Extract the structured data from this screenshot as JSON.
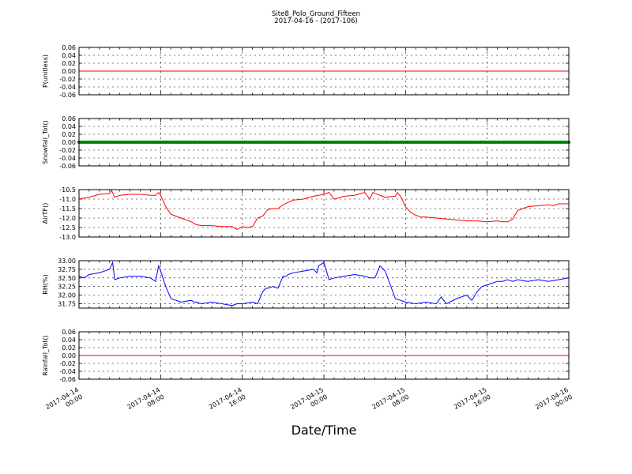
{
  "figure": {
    "title": "Site8_Polo_Ground_Fifteen",
    "subtitle": "2017-04-16 - (2017-106)",
    "xlabel": "Date/Time"
  },
  "chart_data": [
    {
      "type": "line",
      "ylabel": "P(unitless)",
      "ylim": [
        -0.06,
        0.06
      ],
      "yticks": [
        "0.06",
        "0.04",
        "0.02",
        "0.00",
        "-0.02",
        "-0.04",
        "-0.06"
      ],
      "yticks_values": [
        0.06,
        0.04,
        0.02,
        0.0,
        -0.02,
        -0.04,
        -0.06
      ],
      "grid": true,
      "series": [
        {
          "color": "#ff0000",
          "style": "line",
          "x": [
            0,
            48
          ],
          "y": [
            0,
            0
          ]
        }
      ]
    },
    {
      "type": "scatter",
      "ylabel": "Snowfall_Tot()",
      "ylim": [
        -0.06,
        0.06
      ],
      "yticks": [
        "0.06",
        "0.04",
        "0.02",
        "0.00",
        "-0.02",
        "-0.04",
        "-0.06"
      ],
      "yticks_values": [
        0.06,
        0.04,
        0.02,
        0.0,
        -0.02,
        -0.04,
        -0.06
      ],
      "grid": true,
      "series": [
        {
          "color": "#008000",
          "style": "dots",
          "x": [
            0,
            48
          ],
          "y": [
            0,
            0
          ]
        }
      ]
    },
    {
      "type": "line",
      "ylabel": "AirTF()",
      "ylim": [
        -13.0,
        -10.5
      ],
      "yticks": [
        "-10.5",
        "-11.0",
        "-11.5",
        "-12.0",
        "-12.5",
        "-13.0"
      ],
      "yticks_values": [
        -10.5,
        -11.0,
        -11.5,
        -12.0,
        -12.5,
        -13.0
      ],
      "grid": true,
      "series": [
        {
          "color": "#ff0000",
          "style": "line",
          "x": [
            0,
            0.5,
            1,
            2,
            3,
            3.2,
            3.5,
            4,
            5,
            6,
            7,
            7.5,
            7.8,
            8,
            8.5,
            9,
            9.5,
            10,
            11,
            11.5,
            12,
            13,
            14,
            15,
            15.5,
            16,
            16.5,
            17,
            17.5,
            18,
            18.5,
            19,
            19.5,
            20,
            21,
            22,
            23,
            23.5,
            24,
            24.5,
            25,
            26,
            27,
            28,
            28.5,
            28.8,
            29,
            30,
            31,
            31.2,
            31.5,
            32,
            32.5,
            33,
            33.5,
            34,
            35,
            36,
            37,
            38,
            39,
            40,
            41,
            41.5,
            42,
            42.5,
            43,
            44,
            45,
            46,
            46.5,
            47,
            48
          ],
          "y": [
            -11.0,
            -10.95,
            -10.9,
            -10.75,
            -10.7,
            -10.55,
            -10.9,
            -10.8,
            -10.75,
            -10.75,
            -10.8,
            -10.8,
            -10.65,
            -10.8,
            -11.4,
            -11.8,
            -11.9,
            -12.0,
            -12.2,
            -12.35,
            -12.4,
            -12.4,
            -12.45,
            -12.45,
            -12.6,
            -12.45,
            -12.5,
            -12.45,
            -12.0,
            -11.9,
            -11.55,
            -11.5,
            -11.5,
            -11.3,
            -11.05,
            -11.0,
            -10.85,
            -10.8,
            -10.75,
            -10.65,
            -11.0,
            -10.85,
            -10.8,
            -10.65,
            -11.0,
            -10.65,
            -10.7,
            -10.9,
            -10.85,
            -10.65,
            -10.85,
            -11.4,
            -11.7,
            -11.85,
            -11.95,
            -11.95,
            -12.0,
            -12.05,
            -12.1,
            -12.15,
            -12.15,
            -12.2,
            -12.15,
            -12.2,
            -12.2,
            -12.05,
            -11.6,
            -11.4,
            -11.35,
            -11.3,
            -11.35,
            -11.25,
            -11.25
          ]
        }
      ]
    },
    {
      "type": "line",
      "ylabel": "RH(%)",
      "ylim": [
        31.625,
        33.0
      ],
      "yticks": [
        "33.00",
        "32.75",
        "32.50",
        "32.25",
        "32.00",
        "31.75"
      ],
      "yticks_values": [
        33.0,
        32.75,
        32.5,
        32.25,
        32.0,
        31.75
      ],
      "grid": true,
      "series": [
        {
          "color": "#0000ff",
          "style": "line",
          "x": [
            0,
            0.5,
            1,
            2,
            3,
            3.3,
            3.5,
            4,
            5,
            6,
            7,
            7.5,
            7.8,
            8,
            8.5,
            9,
            9.5,
            10,
            11,
            11.3,
            11.5,
            12,
            13,
            14,
            15,
            15.5,
            16,
            17,
            17.5,
            18,
            18.3,
            18.5,
            19,
            19.5,
            20,
            20.3,
            20.5,
            21,
            22,
            23,
            23.3,
            23.5,
            24,
            24.5,
            25,
            26,
            27,
            28,
            28.5,
            29,
            29.5,
            30,
            30.5,
            31,
            31.5,
            32,
            33,
            34,
            35,
            35.5,
            36,
            37,
            37.5,
            38,
            38.5,
            39,
            39.5,
            40,
            41,
            41.5,
            42,
            42.5,
            43,
            44,
            45,
            46,
            47,
            48
          ],
          "y": [
            32.55,
            32.5,
            32.6,
            32.65,
            32.75,
            32.95,
            32.45,
            32.5,
            32.55,
            32.55,
            32.5,
            32.4,
            32.85,
            32.7,
            32.25,
            31.9,
            31.85,
            31.8,
            31.85,
            31.8,
            31.8,
            31.75,
            31.8,
            31.75,
            31.7,
            31.75,
            31.75,
            31.8,
            31.75,
            32.1,
            32.2,
            32.2,
            32.25,
            32.2,
            32.55,
            32.55,
            32.6,
            32.65,
            32.7,
            32.75,
            32.65,
            32.85,
            32.95,
            32.45,
            32.5,
            32.55,
            32.6,
            32.55,
            32.5,
            32.5,
            32.85,
            32.7,
            32.3,
            31.9,
            31.85,
            31.8,
            31.75,
            31.8,
            31.75,
            31.95,
            31.75,
            31.9,
            31.95,
            32.0,
            31.85,
            32.1,
            32.25,
            32.3,
            32.4,
            32.4,
            32.45,
            32.4,
            32.45,
            32.4,
            32.45,
            32.4,
            32.45,
            32.5
          ]
        }
      ]
    },
    {
      "type": "line",
      "ylabel": "Rainfall_Tot()",
      "ylim": [
        -0.06,
        0.06
      ],
      "yticks": [
        "0.06",
        "0.04",
        "0.02",
        "0.00",
        "-0.02",
        "-0.04",
        "-0.06"
      ],
      "yticks_values": [
        0.06,
        0.04,
        0.02,
        0.0,
        -0.02,
        -0.04,
        -0.06
      ],
      "grid": true,
      "series": [
        {
          "color": "#ff0000",
          "style": "line",
          "x": [
            0,
            48
          ],
          "y": [
            0,
            0
          ]
        }
      ]
    }
  ],
  "xaxis": {
    "range_hours": [
      0,
      48
    ],
    "ticks_hours": [
      0,
      8,
      16,
      24,
      32,
      40,
      48
    ],
    "tick_labels": [
      [
        "2017-04-14",
        "00:00"
      ],
      [
        "2017-04-14",
        "08:00"
      ],
      [
        "2017-04-14",
        "16:00"
      ],
      [
        "2017-04-15",
        "00:00"
      ],
      [
        "2017-04-15",
        "08:00"
      ],
      [
        "2017-04-15",
        "16:00"
      ],
      [
        "2017-04-16",
        "00:00"
      ]
    ]
  }
}
